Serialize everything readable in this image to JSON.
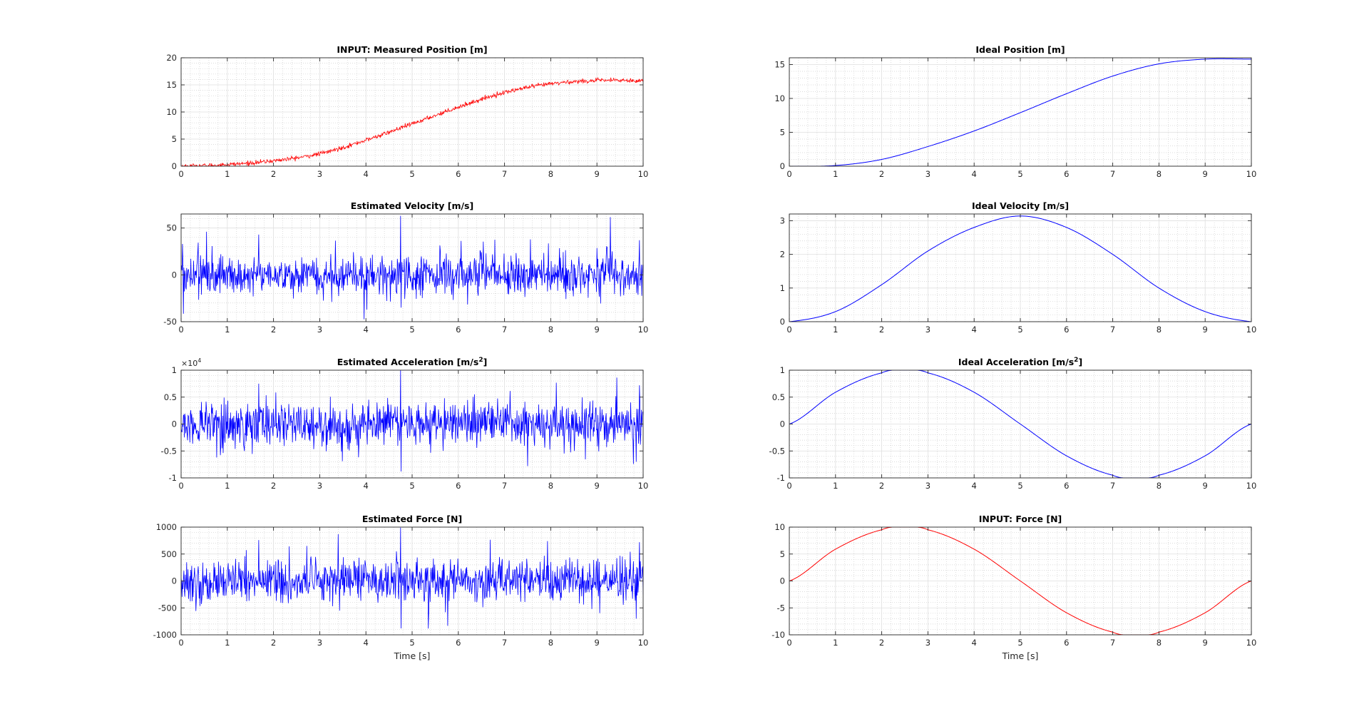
{
  "figure": {
    "background": "#ffffff"
  },
  "colors": {
    "red": "#ff0000",
    "blue": "#0000ff",
    "axis": "#262626",
    "grid": "#dfdfdf",
    "minor_grid": "#cfcfcf"
  },
  "chart_data": [
    {
      "id": "p1",
      "type": "line",
      "title": "INPUT: Measured Position [m]",
      "xlabel": "",
      "ylabel": "",
      "xlim": [
        0,
        10
      ],
      "ylim": [
        0,
        20
      ],
      "xticks": [
        0,
        1,
        2,
        3,
        4,
        5,
        6,
        7,
        8,
        9,
        10
      ],
      "yticks": [
        0,
        5,
        10,
        15,
        20
      ],
      "xticklabels": [
        "0",
        "1",
        "2",
        "3",
        "4",
        "5",
        "6",
        "7",
        "8",
        "9",
        "10"
      ],
      "yticklabels": [
        "0",
        "5",
        "10",
        "15",
        "20"
      ],
      "grid": true,
      "minor_grid": true,
      "series": [
        {
          "color": "#ff0000",
          "kind": "noisy",
          "base": "position",
          "noise": 0.2,
          "x": [
            0,
            1,
            2,
            3,
            4,
            5,
            6,
            7,
            8,
            9,
            10
          ],
          "y": [
            0,
            0.3,
            1.0,
            2.3,
            4.8,
            7.8,
            10.9,
            13.6,
            15.2,
            15.8,
            15.8
          ]
        }
      ]
    },
    {
      "id": "p2",
      "type": "line",
      "title": "Ideal Position [m]",
      "xlabel": "",
      "ylabel": "",
      "xlim": [
        0,
        10
      ],
      "ylim": [
        0,
        16
      ],
      "xticks": [
        0,
        1,
        2,
        3,
        4,
        5,
        6,
        7,
        8,
        9,
        10
      ],
      "yticks": [
        0,
        5,
        10,
        15
      ],
      "xticklabels": [
        "0",
        "1",
        "2",
        "3",
        "4",
        "5",
        "6",
        "7",
        "8",
        "9",
        "10"
      ],
      "yticklabels": [
        "0",
        "5",
        "10",
        "15"
      ],
      "grid": true,
      "minor_grid": true,
      "series": [
        {
          "color": "#0000ff",
          "kind": "smooth",
          "base": "position",
          "x": [
            0,
            1,
            2,
            3,
            4,
            5,
            6,
            7,
            8,
            9,
            10
          ],
          "y": [
            0,
            0.1,
            1.0,
            2.9,
            5.2,
            7.9,
            10.7,
            13.3,
            15.1,
            15.8,
            15.8
          ]
        }
      ]
    },
    {
      "id": "p3",
      "type": "line",
      "title": "Estimated Velocity [m/s]",
      "xlabel": "",
      "ylabel": "",
      "xlim": [
        0,
        10
      ],
      "ylim": [
        -50,
        65
      ],
      "xticks": [
        0,
        1,
        2,
        3,
        4,
        5,
        6,
        7,
        8,
        9,
        10
      ],
      "yticks": [
        -50,
        0,
        50
      ],
      "xticklabels": [
        "0",
        "1",
        "2",
        "3",
        "4",
        "5",
        "6",
        "7",
        "8",
        "9",
        "10"
      ],
      "yticklabels": [
        "-50",
        "0",
        "50"
      ],
      "grid": true,
      "minor_grid": true,
      "series": [
        {
          "color": "#0000ff",
          "kind": "noise",
          "noise": 12,
          "spikes": [
            {
              "x": 4.75,
              "y": 63
            },
            {
              "x": 4.76,
              "y": -35
            },
            {
              "x": 1.68,
              "y": 43
            },
            {
              "x": 9.92,
              "y": 37
            },
            {
              "x": 0.03,
              "y": 33
            }
          ]
        }
      ]
    },
    {
      "id": "p4",
      "type": "line",
      "title": "Ideal Velocity [m/s]",
      "xlabel": "",
      "ylabel": "",
      "xlim": [
        0,
        10
      ],
      "ylim": [
        0,
        3.2
      ],
      "xticks": [
        0,
        1,
        2,
        3,
        4,
        5,
        6,
        7,
        8,
        9,
        10
      ],
      "yticks": [
        0,
        1,
        2,
        3
      ],
      "xticklabels": [
        "0",
        "1",
        "2",
        "3",
        "4",
        "5",
        "6",
        "7",
        "8",
        "9",
        "10"
      ],
      "yticklabels": [
        "0",
        "1",
        "2",
        "3"
      ],
      "grid": true,
      "minor_grid": true,
      "series": [
        {
          "color": "#0000ff",
          "kind": "smooth",
          "base": "velocity",
          "x": [
            0,
            1,
            2,
            3,
            4,
            5,
            6,
            7,
            8,
            9,
            10
          ],
          "y": [
            0,
            0.3,
            1.1,
            2.1,
            2.8,
            3.14,
            2.8,
            2.0,
            1.0,
            0.3,
            0
          ]
        }
      ]
    },
    {
      "id": "p5",
      "type": "line",
      "title": "Estimated Acceleration [m/s",
      "title_sup": "2",
      "title_end": "]",
      "exponent_label": "×10",
      "exponent_sup": "4",
      "xlabel": "",
      "ylabel": "",
      "xlim": [
        0,
        10
      ],
      "ylim": [
        -1,
        1
      ],
      "xticks": [
        0,
        1,
        2,
        3,
        4,
        5,
        6,
        7,
        8,
        9,
        10
      ],
      "yticks": [
        -1,
        -0.5,
        0,
        0.5,
        1
      ],
      "xticklabels": [
        "0",
        "1",
        "2",
        "3",
        "4",
        "5",
        "6",
        "7",
        "8",
        "9",
        "10"
      ],
      "yticklabels": [
        "-1",
        "-0.5",
        "0",
        "0.5",
        "1"
      ],
      "grid": true,
      "minor_grid": true,
      "series": [
        {
          "color": "#0000ff",
          "kind": "noise",
          "noise": 0.22,
          "spikes": [
            {
              "x": 4.75,
              "y": 1.0
            },
            {
              "x": 4.76,
              "y": -0.88
            },
            {
              "x": 1.68,
              "y": 0.75
            },
            {
              "x": 9.92,
              "y": 0.72
            },
            {
              "x": 9.85,
              "y": -0.7
            }
          ]
        }
      ]
    },
    {
      "id": "p6",
      "type": "line",
      "title": "Ideal Acceleration [m/s",
      "title_sup": "2",
      "title_end": "]",
      "xlabel": "",
      "ylabel": "",
      "xlim": [
        0,
        10
      ],
      "ylim": [
        -1,
        1
      ],
      "xticks": [
        0,
        1,
        2,
        3,
        4,
        5,
        6,
        7,
        8,
        9,
        10
      ],
      "yticks": [
        -1,
        -0.5,
        0,
        0.5,
        1
      ],
      "xticklabels": [
        "0",
        "1",
        "2",
        "3",
        "4",
        "5",
        "6",
        "7",
        "8",
        "9",
        "10"
      ],
      "yticklabels": [
        "-1",
        "-0.5",
        "0",
        "0.5",
        "1"
      ],
      "grid": true,
      "minor_grid": true,
      "series": [
        {
          "color": "#0000ff",
          "kind": "smooth",
          "base": "acceleration",
          "x": [
            0,
            1,
            2,
            2.5,
            3,
            4,
            5,
            6,
            7,
            7.5,
            8,
            9,
            10
          ],
          "y": [
            0,
            0.59,
            0.95,
            1,
            0.95,
            0.59,
            0,
            -0.59,
            -0.95,
            -1,
            -0.95,
            -0.59,
            0
          ]
        }
      ]
    },
    {
      "id": "p7",
      "type": "line",
      "title": "Estimated Force [N]",
      "xlabel": "Time [s]",
      "ylabel": "",
      "xlim": [
        0,
        10
      ],
      "ylim": [
        -1000,
        1000
      ],
      "xticks": [
        0,
        1,
        2,
        3,
        4,
        5,
        6,
        7,
        8,
        9,
        10
      ],
      "yticks": [
        -1000,
        -500,
        0,
        500,
        1000
      ],
      "xticklabels": [
        "0",
        "1",
        "2",
        "3",
        "4",
        "5",
        "6",
        "7",
        "8",
        "9",
        "10"
      ],
      "yticklabels": [
        "-1000",
        "-500",
        "0",
        "500",
        "1000"
      ],
      "grid": true,
      "minor_grid": true,
      "series": [
        {
          "color": "#0000ff",
          "kind": "noise",
          "noise": 220,
          "spikes": [
            {
              "x": 4.75,
              "y": 990
            },
            {
              "x": 4.76,
              "y": -880
            },
            {
              "x": 1.68,
              "y": 760
            },
            {
              "x": 9.92,
              "y": 720
            },
            {
              "x": 9.85,
              "y": -700
            }
          ]
        }
      ]
    },
    {
      "id": "p8",
      "type": "line",
      "title": "INPUT: Force [N]",
      "xlabel": "Time [s]",
      "ylabel": "",
      "xlim": [
        0,
        10
      ],
      "ylim": [
        -10,
        10
      ],
      "xticks": [
        0,
        1,
        2,
        3,
        4,
        5,
        6,
        7,
        8,
        9,
        10
      ],
      "yticks": [
        -10,
        -5,
        0,
        5,
        10
      ],
      "xticklabels": [
        "0",
        "1",
        "2",
        "3",
        "4",
        "5",
        "6",
        "7",
        "8",
        "9",
        "10"
      ],
      "yticklabels": [
        "-10",
        "-5",
        "0",
        "5",
        "10"
      ],
      "grid": true,
      "minor_grid": true,
      "series": [
        {
          "color": "#ff0000",
          "kind": "smooth",
          "base": "acceleration",
          "x": [
            0,
            1,
            2,
            2.5,
            3,
            4,
            5,
            6,
            7,
            7.5,
            8,
            9,
            10
          ],
          "y": [
            0,
            5.9,
            9.5,
            10,
            9.5,
            5.9,
            0,
            -5.9,
            -9.5,
            -10,
            -9.5,
            -5.9,
            0
          ]
        }
      ]
    }
  ]
}
